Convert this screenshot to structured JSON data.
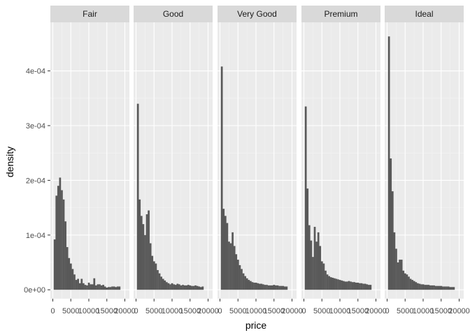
{
  "chart_data": {
    "type": "bar",
    "subtype": "faceted histogram (density)",
    "title": "",
    "xlabel": "price",
    "ylabel": "density",
    "xlim": [
      0,
      20000
    ],
    "ylim": [
      0,
      0.00048
    ],
    "x_ticks": [
      0,
      5000,
      10000,
      15000,
      20000
    ],
    "x_tick_labels": [
      "0",
      "5000",
      "10000",
      "15000",
      "20000"
    ],
    "y_ticks": [
      0,
      0.0001,
      0.0002,
      0.0003,
      0.0004
    ],
    "y_tick_labels": [
      "0e+00",
      "1e-04",
      "2e-04",
      "3e-04",
      "4e-04"
    ],
    "grid": true,
    "legend": "none",
    "bar_color": "#595959",
    "panel_background": "#ebebeb",
    "strip_background": "#d9d9d9",
    "bin_width": 500,
    "bin_start": 250,
    "facets": [
      {
        "name": "Fair",
        "values": [
          9.2e-05,
          0.000172,
          0.00019,
          0.000205,
          0.000182,
          0.000165,
          0.000125,
          7.8e-05,
          5.8e-05,
          4.8e-05,
          3.8e-05,
          2.8e-05,
          1.8e-05,
          2e-05,
          1.2e-05,
          2e-05,
          1.2e-05,
          9e-06,
          8e-06,
          1.3e-05,
          1e-05,
          1e-05,
          2.1e-05,
          8e-06,
          1e-05,
          1e-05,
          8e-06,
          9e-06,
          6e-06,
          4e-06,
          5e-06,
          5e-06,
          6e-06,
          6e-06,
          5e-06,
          6e-06,
          6e-06
        ]
      },
      {
        "name": "Good",
        "values": [
          0.00034,
          0.000165,
          0.000135,
          0.00012,
          0.0001,
          0.000138,
          0.000145,
          8.5e-05,
          6.2e-05,
          5.2e-05,
          4.8e-05,
          3.6e-05,
          3e-05,
          2.4e-05,
          2e-05,
          1.7e-05,
          1.4e-05,
          1.2e-05,
          1e-05,
          1.2e-05,
          1e-05,
          9e-06,
          1.1e-05,
          1e-05,
          8e-06,
          9e-06,
          8e-06,
          8e-06,
          9e-06,
          8e-06,
          7e-06,
          7e-06,
          8e-06,
          7e-06,
          6e-06,
          5e-06,
          6e-06
        ]
      },
      {
        "name": "Very Good",
        "values": [
          0.000408,
          0.000148,
          0.000135,
          0.000122,
          8.8e-05,
          8.5e-05,
          0.000105,
          8e-05,
          6.5e-05,
          5.5e-05,
          4.5e-05,
          3.8e-05,
          3e-05,
          2.5e-05,
          2.1e-05,
          1.8e-05,
          1.6e-05,
          1.4e-05,
          1.3e-05,
          1.3e-05,
          1.2e-05,
          1.1e-05,
          1.1e-05,
          1e-05,
          9e-06,
          9e-06,
          8e-06,
          8e-06,
          8e-06,
          9e-06,
          8e-06,
          8e-06,
          7e-06,
          7e-06,
          7e-06,
          6e-06,
          6e-06
        ]
      },
      {
        "name": "Premium",
        "values": [
          0.000335,
          0.000185,
          0.000118,
          9e-05,
          6e-05,
          0.000115,
          8.8e-05,
          0.000105,
          8e-05,
          5.2e-05,
          4.8e-05,
          3.5e-05,
          2.8e-05,
          2.5e-05,
          2.3e-05,
          2.2e-05,
          2.1e-05,
          2e-05,
          1.9e-05,
          1.8e-05,
          1.7e-05,
          1.6e-05,
          1.5e-05,
          1.5e-05,
          1.6e-05,
          1.5e-05,
          1.4e-05,
          1.4e-05,
          1.3e-05,
          1.3e-05,
          1.2e-05,
          1.2e-05,
          1.1e-05,
          1.1e-05,
          1e-05,
          9e-06,
          9e-06
        ]
      },
      {
        "name": "Ideal",
        "values": [
          0.000463,
          0.00024,
          0.00018,
          0.000105,
          7.5e-05,
          5e-05,
          5.5e-05,
          5.5e-05,
          3.5e-05,
          3e-05,
          2.8e-05,
          2.4e-05,
          2e-05,
          1.8e-05,
          1.6e-05,
          1.4e-05,
          1.2e-05,
          1.1e-05,
          1e-05,
          1e-05,
          9e-06,
          9e-06,
          9e-06,
          8e-06,
          8e-06,
          8e-06,
          7e-06,
          7e-06,
          7e-06,
          7e-06,
          6e-06,
          6e-06,
          6e-06,
          6e-06,
          5e-06,
          5e-06,
          5e-06
        ]
      }
    ]
  }
}
